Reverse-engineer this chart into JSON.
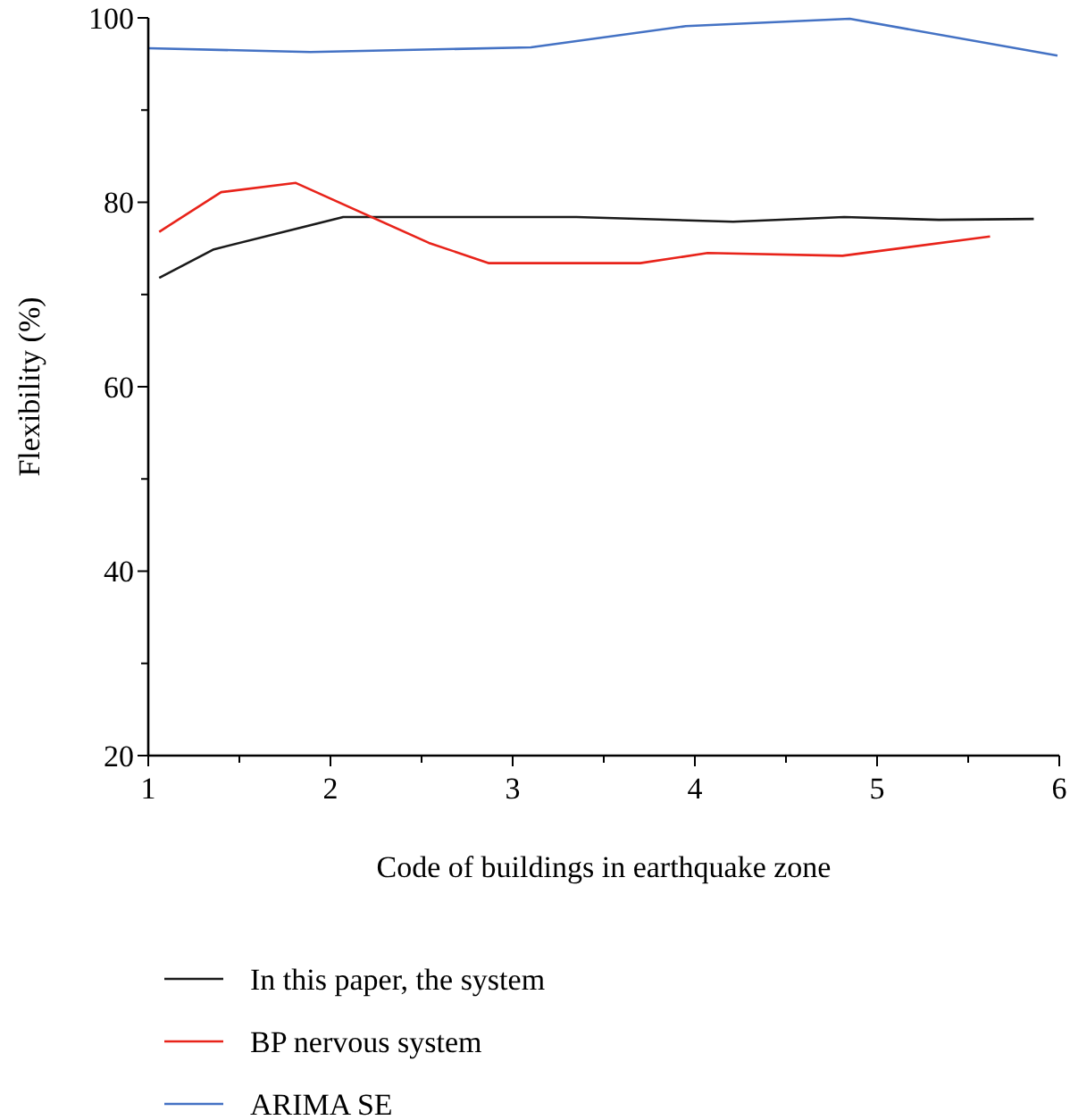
{
  "chart_data": {
    "type": "line",
    "xlabel": "Code of buildings in earthquake zone",
    "ylabel": "Flexibility (%)",
    "xlim": [
      1,
      6
    ],
    "xticks": [
      1,
      {
        "value": 1.5,
        "label": null
      },
      2,
      {
        "value": 2.5,
        "label": null
      },
      3,
      {
        "value": 3.5,
        "label": null
      },
      4,
      {
        "value": 4.5,
        "label": null
      },
      5,
      {
        "value": 5.5,
        "label": null
      },
      6
    ],
    "ylim": [
      20,
      100
    ],
    "yticks": [
      20,
      {
        "value": 30,
        "label": null
      },
      40,
      {
        "value": 50,
        "label": null
      },
      60,
      {
        "value": 70,
        "label": null
      },
      80,
      {
        "value": 90,
        "label": null
      },
      100
    ],
    "legend": "bottom",
    "grid": false,
    "series": [
      {
        "name": "In this paper, the system",
        "color": "#1a1a1a",
        "x": [
          1.06,
          1.36,
          2.07,
          3.35,
          4.21,
          4.82,
          5.34,
          5.86
        ],
        "values": [
          71.8,
          74.9,
          78.4,
          78.4,
          77.9,
          78.4,
          78.1,
          78.2
        ]
      },
      {
        "name": "BP nervous system",
        "color": "#e8231a",
        "x": [
          1.06,
          1.4,
          1.81,
          2.54,
          2.87,
          3.7,
          4.07,
          4.81,
          5.62
        ],
        "values": [
          76.8,
          81.1,
          82.1,
          75.6,
          73.4,
          73.4,
          74.5,
          74.2,
          76.3
        ]
      },
      {
        "name": "ARIMA SE",
        "color": "#4472c4",
        "x": [
          1.0,
          1.89,
          3.1,
          3.95,
          4.85,
          5.99
        ],
        "values": [
          96.7,
          96.3,
          96.8,
          99.1,
          99.9,
          95.9
        ]
      }
    ]
  }
}
